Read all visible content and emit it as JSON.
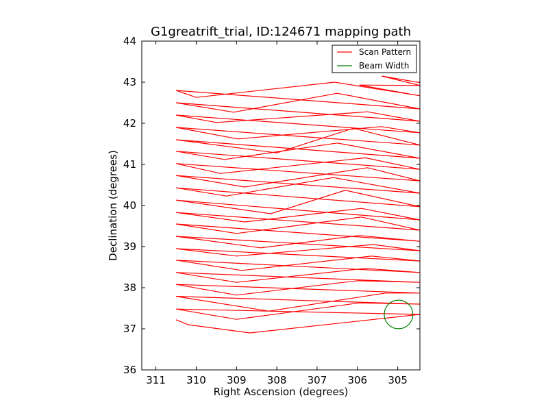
{
  "chart_data": {
    "type": "line",
    "title": "G1greatrift_trial, ID:124671 mapping path",
    "xlabel": "Right Ascension (degrees)",
    "ylabel": "Declination (degrees)",
    "xlim": [
      311.35,
      304.45
    ],
    "ylim": [
      36,
      44
    ],
    "xticks": [
      311,
      310,
      309,
      308,
      307,
      306,
      305
    ],
    "yticks": [
      36,
      37,
      38,
      39,
      40,
      41,
      42,
      43,
      44
    ],
    "grid": false,
    "legend_position": "top-right",
    "series": [
      {
        "name": "Scan Pattern",
        "color": "#ff0000",
        "points": [
          [
            310.5,
            37.22
          ],
          [
            310.2,
            37.1
          ],
          [
            308.67,
            36.9
          ],
          [
            304.45,
            37.35
          ],
          [
            310.5,
            37.48
          ],
          [
            309.0,
            37.23
          ],
          [
            305.95,
            37.63
          ],
          [
            304.45,
            37.6
          ],
          [
            310.5,
            37.79
          ],
          [
            308.2,
            37.43
          ],
          [
            305.3,
            37.87
          ],
          [
            304.45,
            37.87
          ],
          [
            310.5,
            38.08
          ],
          [
            309.0,
            37.82
          ],
          [
            306.0,
            38.17
          ],
          [
            304.45,
            38.13
          ],
          [
            310.5,
            38.37
          ],
          [
            309.0,
            38.13
          ],
          [
            305.8,
            38.47
          ],
          [
            304.45,
            38.37
          ],
          [
            310.5,
            38.67
          ],
          [
            308.87,
            38.42
          ],
          [
            305.65,
            38.77
          ],
          [
            304.45,
            38.65
          ],
          [
            310.5,
            38.95
          ],
          [
            309.0,
            38.77
          ],
          [
            305.6,
            39.05
          ],
          [
            304.45,
            38.9
          ],
          [
            310.5,
            39.25
          ],
          [
            308.4,
            38.97
          ],
          [
            305.95,
            39.27
          ],
          [
            304.45,
            39.13
          ],
          [
            310.5,
            39.55
          ],
          [
            309.0,
            39.32
          ],
          [
            305.9,
            39.72
          ],
          [
            304.45,
            39.4
          ],
          [
            310.5,
            39.83
          ],
          [
            308.8,
            39.6
          ],
          [
            305.9,
            39.93
          ],
          [
            304.45,
            39.65
          ],
          [
            310.5,
            40.13
          ],
          [
            308.15,
            39.8
          ],
          [
            306.3,
            40.37
          ],
          [
            304.45,
            39.97
          ],
          [
            310.5,
            40.43
          ],
          [
            309.25,
            40.23
          ],
          [
            306.6,
            40.68
          ],
          [
            304.45,
            40.3
          ],
          [
            310.5,
            40.73
          ],
          [
            308.8,
            40.45
          ],
          [
            305.75,
            40.92
          ],
          [
            304.45,
            40.6
          ],
          [
            310.5,
            41.02
          ],
          [
            309.4,
            40.78
          ],
          [
            305.8,
            41.16
          ],
          [
            304.45,
            40.88
          ],
          [
            310.5,
            41.32
          ],
          [
            309.3,
            41.12
          ],
          [
            306.5,
            41.52
          ],
          [
            304.45,
            41.15
          ],
          [
            310.5,
            41.6
          ],
          [
            308.0,
            41.28
          ],
          [
            306.1,
            41.88
          ],
          [
            304.45,
            41.47
          ],
          [
            310.5,
            41.9
          ],
          [
            308.97,
            41.62
          ],
          [
            305.4,
            41.92
          ],
          [
            304.45,
            41.77
          ],
          [
            310.5,
            42.2
          ],
          [
            309.5,
            42.02
          ],
          [
            305.75,
            42.28
          ],
          [
            304.45,
            42.05
          ],
          [
            310.5,
            42.5
          ],
          [
            309.07,
            42.27
          ],
          [
            306.5,
            42.73
          ],
          [
            304.45,
            42.35
          ],
          [
            310.5,
            42.8
          ],
          [
            310.0,
            42.63
          ],
          [
            306.57,
            43.0
          ],
          [
            304.45,
            42.67
          ],
          [
            305.95,
            42.93
          ],
          [
            304.45,
            42.92
          ],
          [
            305.4,
            43.15
          ],
          [
            304.45,
            42.99
          ]
        ]
      },
      {
        "name": "Beam Width",
        "color": "#008000",
        "shape": "circle",
        "center": [
          304.98,
          37.35
        ],
        "radius_deg": 0.355
      }
    ]
  }
}
